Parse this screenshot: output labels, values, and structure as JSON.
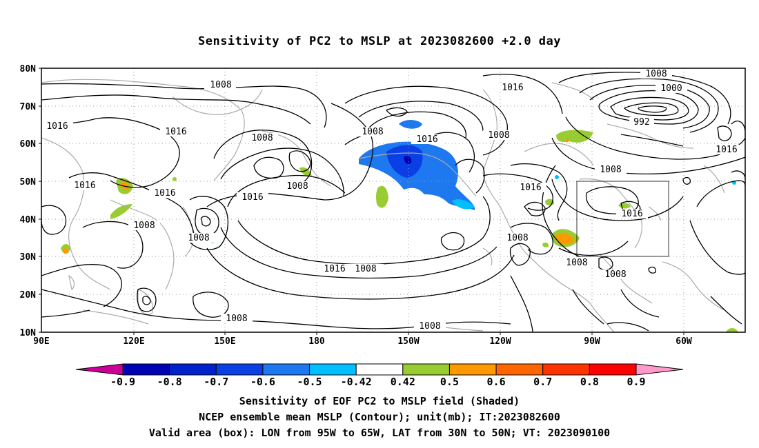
{
  "title": "Sensitivity of PC2 to MSLP at 2023082600 +2.0 day",
  "lat_labels": [
    "80N",
    "70N",
    "60N",
    "50N",
    "40N",
    "30N",
    "20N",
    "10N"
  ],
  "lon_labels": [
    "90E",
    "120E",
    "150E",
    "180",
    "150W",
    "120W",
    "90W",
    "60W"
  ],
  "contour_labels": [
    "1008",
    "1016",
    "1016",
    "1016",
    "1008",
    "1008",
    "1008",
    "1016",
    "1008",
    "1008",
    "1016",
    "1008",
    "1016",
    "1016",
    "1008",
    "1008",
    "1016",
    "1016",
    "1008",
    "1000",
    "992",
    "1008",
    "1016",
    "1008",
    "1016",
    "1008",
    "1008",
    "1008"
  ],
  "colorbar": {
    "labels": [
      "-0.9",
      "-0.8",
      "-0.7",
      "-0.6",
      "-0.5",
      "-0.42",
      "0.42",
      "0.5",
      "0.6",
      "0.7",
      "0.8",
      "0.9"
    ],
    "colors": [
      "#cc0099",
      "#0000b4",
      "#0022cc",
      "#0a3fe6",
      "#1e78f0",
      "#00bfff",
      "#ffffff",
      "#99cc33",
      "#ff9900",
      "#ff6600",
      "#ff3300",
      "#ff0000",
      "#ff99cc"
    ]
  },
  "valid_area": {
    "lon_from": "95W",
    "lon_to": "65W",
    "lat_from": "30N",
    "lat_to": "50N"
  },
  "footer": {
    "line1": "Sensitivity of EOF PC2 to MSLP field (Shaded)",
    "line2": "NCEP ensemble mean MSLP (Contour); unit(mb); IT:2023082600",
    "line3": "Valid area (box): LON from 95W to 65W, LAT from 30N to 50N; VT: 2023090100"
  },
  "colors": {
    "contour": "#000000",
    "coast": "#aaaaaa",
    "grid": "#999999"
  }
}
